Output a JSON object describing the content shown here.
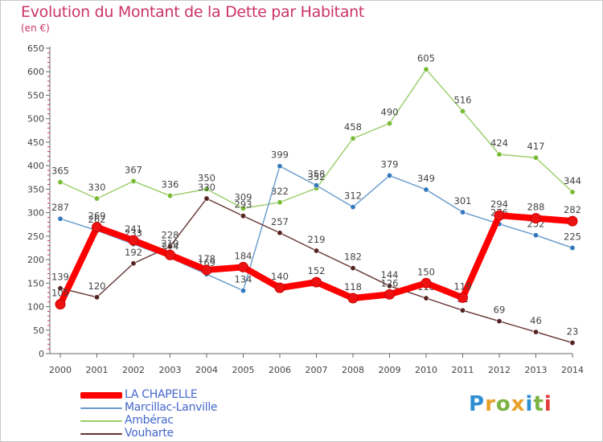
{
  "title": "Evolution du Montant de la Dette par Habitant",
  "unit": "(en €)",
  "legend": [
    {
      "label": "LA CHAPELLE",
      "color": "#ff0000"
    },
    {
      "label": "Marcillac-Lanville",
      "color": "#6699cc"
    },
    {
      "label": "Ambérac",
      "color": "#99cc66"
    },
    {
      "label": "Vouharte",
      "color": "#663333"
    }
  ],
  "logo": {
    "text": "Proxiti"
  },
  "chart_data": {
    "type": "line",
    "title": "Evolution du Montant de la Dette par Habitant",
    "ylabel": "(en €)",
    "x": [
      "2000",
      "2001",
      "2002",
      "2003",
      "2004",
      "2005",
      "2006",
      "2007",
      "2008",
      "2009",
      "2010",
      "2011",
      "2012",
      "2013",
      "2014"
    ],
    "yticks": [
      "0",
      "50",
      "100",
      "150",
      "200",
      "250",
      "300",
      "350",
      "400",
      "450",
      "500",
      "550",
      "600",
      "650"
    ],
    "ylim": [
      0,
      650
    ],
    "grid": false,
    "legend_position": "bottom-left",
    "series": [
      {
        "name": "Ambérac",
        "color": "#99cc66",
        "point_color": "#77bb33",
        "values": [
          365,
          330,
          367,
          336,
          350,
          309,
          322,
          352,
          458,
          490,
          605,
          516,
          424,
          417,
          344
        ],
        "labels": [
          "365",
          "330",
          "367",
          "336",
          "350",
          "309",
          "322",
          "352",
          "458",
          "490",
          "605",
          "516",
          "424",
          "417",
          "344"
        ]
      },
      {
        "name": "Marcillac-Lanville",
        "color": "#6699cc",
        "point_color": "#3377bb",
        "values": [
          287,
          262,
          233,
          204,
          169,
          134,
          399,
          358,
          312,
          379,
          349,
          301,
          276,
          252,
          225
        ],
        "labels": [
          "287",
          "262",
          "233",
          "204",
          "169",
          "134",
          "399",
          "358",
          "312",
          "379",
          "349",
          "301",
          "276",
          "252",
          "225"
        ]
      },
      {
        "name": "Vouharte",
        "color": "#663333",
        "point_color": "#552222",
        "values": [
          139,
          120,
          192,
          228,
          330,
          293,
          257,
          219,
          182,
          144,
          118,
          92,
          69,
          46,
          23
        ],
        "labels": [
          "139",
          "120",
          "192",
          "228",
          "330",
          "293",
          "257",
          "219",
          "182",
          "144",
          "118",
          "92",
          "69",
          "46",
          "23"
        ]
      },
      {
        "name": "LA CHAPELLE",
        "color": "#ff0000",
        "point_color": "#ee1111",
        "values": [
          105,
          269,
          241,
          210,
          178,
          184,
          140,
          152,
          118,
          126,
          150,
          119,
          294,
          288,
          282
        ],
        "labels": [
          "105",
          "269",
          "241",
          "210",
          "178",
          "184",
          "140",
          "152",
          "118",
          "126",
          "150",
          "119",
          "294",
          "288",
          "282"
        ]
      }
    ]
  }
}
